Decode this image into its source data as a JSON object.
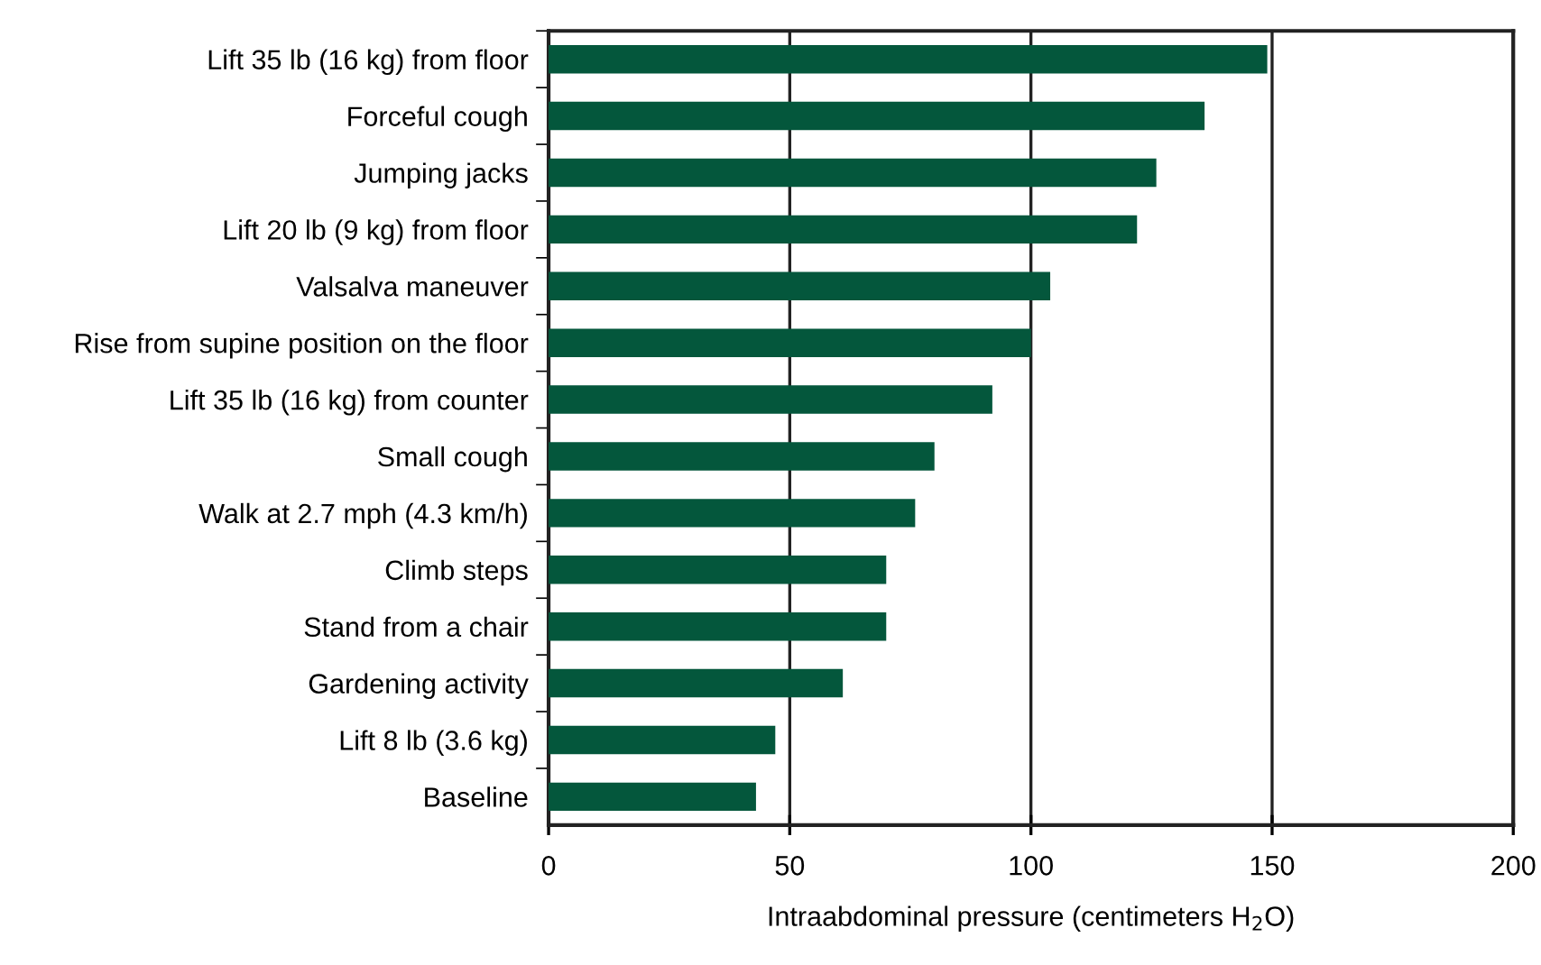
{
  "chart_data": {
    "type": "bar",
    "orientation": "horizontal",
    "categories": [
      "Lift 35 lb (16 kg) from floor",
      "Forceful cough",
      "Jumping jacks",
      "Lift 20 lb (9 kg) from floor",
      "Valsalva maneuver",
      "Rise from supine position on the floor",
      "Lift 35 lb (16 kg) from counter",
      "Small cough",
      "Walk at 2.7 mph (4.3 km/h)",
      "Climb steps",
      "Stand from a chair",
      "Gardening activity",
      "Lift 8 lb (3.6 kg)",
      "Baseline"
    ],
    "values": [
      149,
      136,
      126,
      122,
      104,
      100,
      92,
      80,
      76,
      70,
      70,
      61,
      47,
      43
    ],
    "color": "#04573c",
    "xlabel": "Intraabdominal pressure (centimeters H$_{2}$O)",
    "xlim": [
      0,
      200
    ],
    "xticks": [
      0,
      50,
      100,
      150,
      200
    ],
    "grid": "x"
  }
}
